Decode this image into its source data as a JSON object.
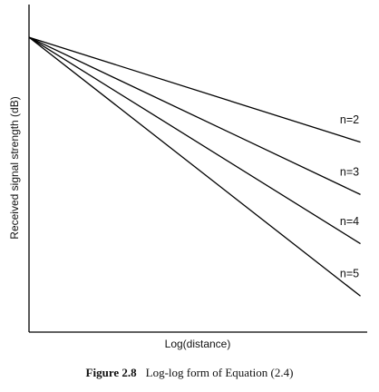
{
  "chart_data": {
    "type": "line",
    "x_label": "Log(distance)",
    "y_label": "Received signal strength (dB)",
    "caption_label": "Figure 2.8",
    "caption_text": "Log-log form of Equation (2.4)",
    "x": [
      0,
      98
    ],
    "xlim": [
      0,
      100
    ],
    "ylim": [
      0,
      100
    ],
    "series": [
      {
        "name": "n=2",
        "color": "#000000",
        "values": [
          90,
          58
        ]
      },
      {
        "name": "n=3",
        "color": "#000000",
        "values": [
          90,
          42
        ]
      },
      {
        "name": "n=4",
        "color": "#000000",
        "values": [
          90,
          27
        ]
      },
      {
        "name": "n=5",
        "color": "#000000",
        "values": [
          90,
          11
        ]
      }
    ]
  }
}
